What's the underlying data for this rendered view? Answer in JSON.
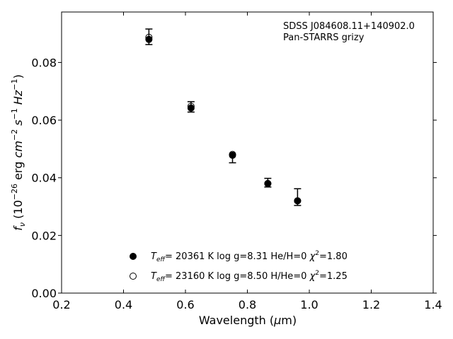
{
  "chart_data": {
    "type": "scatter",
    "annotations": [
      "SDSS J084608.11+140902.0",
      "Pan-STARRS grizy"
    ],
    "xlabel": {
      "prefix": "Wavelength (",
      "symbol": "μ",
      "suffix": "m)"
    },
    "ylabel": {
      "f": "f",
      "nu": "ν",
      "open": " (10",
      "exp26": "−26",
      "erg": " erg ",
      "cm": "cm",
      "exp2": "−2",
      "s": " s",
      "exp1": "−1",
      "hz": " Hz",
      "close": ")"
    },
    "xlim": [
      0.2,
      1.4
    ],
    "ylim": [
      0.0,
      0.0975
    ],
    "xticks": [
      0.2,
      0.4,
      0.6,
      0.8,
      1.0,
      1.2,
      1.4
    ],
    "xtick_labels": [
      "0.2",
      "0.4",
      "0.6",
      "0.8",
      "1.0",
      "1.2",
      "1.4"
    ],
    "yticks": [
      0.0,
      0.02,
      0.04,
      0.06,
      0.08
    ],
    "ytick_labels": [
      "0.00",
      "0.02",
      "0.04",
      "0.06",
      "0.08"
    ],
    "observed": {
      "x": [
        0.482,
        0.618,
        0.752,
        0.866,
        0.962
      ],
      "y": [
        0.0889,
        0.0646,
        0.048,
        0.038,
        0.033
      ],
      "yerr_low": [
        0.0862,
        0.0628,
        0.0452,
        0.0368,
        0.0304
      ],
      "yerr_high": [
        0.0916,
        0.0664,
        0.0482,
        0.0398,
        0.0362
      ]
    },
    "series": [
      {
        "name": "He/H=0",
        "marker": "filled",
        "x": [
          0.482,
          0.618,
          0.752,
          0.866,
          0.962
        ],
        "y": [
          0.088,
          0.0642,
          0.0478,
          0.038,
          0.032
        ]
      },
      {
        "name": "H/He=0",
        "marker": "open",
        "x": [
          0.482,
          0.618,
          0.752,
          0.866,
          0.962
        ],
        "y": [
          0.0887,
          0.0648,
          0.0481,
          0.038,
          0.032
        ]
      }
    ],
    "legend": {
      "placement": "lower-center",
      "entries": [
        {
          "marker": "filled",
          "T": "T",
          "eff": "eff",
          "rest": "= 20361 K  log g=8.31  He/H=0  ",
          "chi": "χ",
          "chi_exp": "2",
          "chi_val": "=1.80"
        },
        {
          "marker": "open",
          "T": "T",
          "eff": "eff",
          "rest": "= 23160 K  log g=8.50  H/He=0  ",
          "chi": "χ",
          "chi_exp": "2",
          "chi_val": "=1.25"
        }
      ]
    },
    "grid": false
  }
}
